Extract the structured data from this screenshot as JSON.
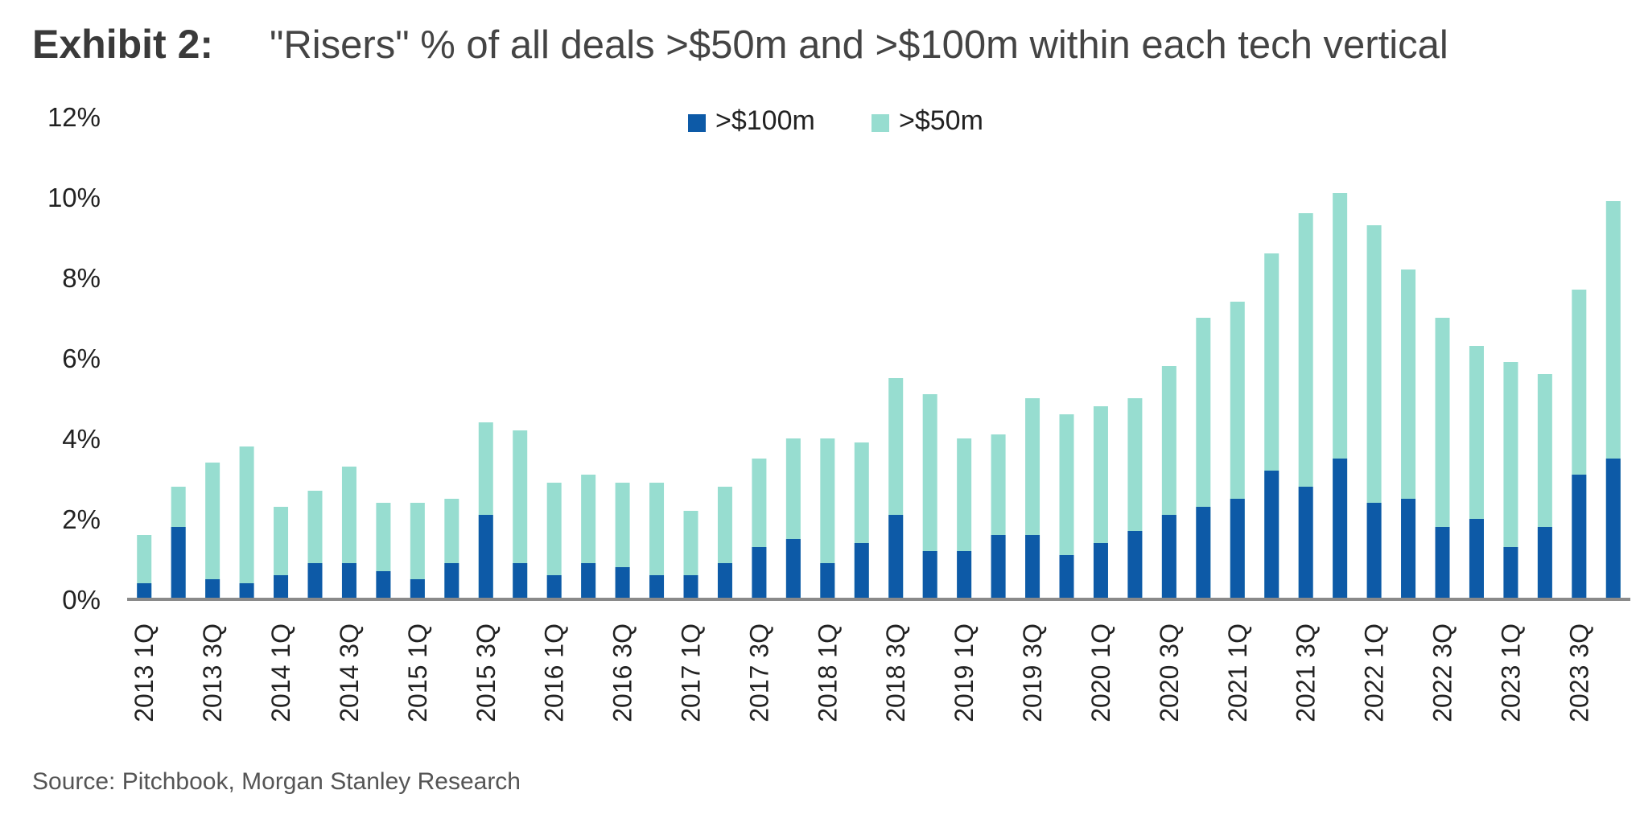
{
  "header": {
    "exhibit": "Exhibit 2:",
    "title": "\"Risers\" % of all deals >$50m and >$100m within each tech vertical"
  },
  "legend": {
    "items": [
      {
        "label": ">$100m",
        "color": "#0d5aa7"
      },
      {
        "label": ">$50m",
        "color": "#97ddd0"
      }
    ]
  },
  "footer": {
    "source": "Source: Pitchbook, Morgan Stanley Research"
  },
  "chart_data": {
    "type": "bar",
    "stacked": false,
    "overlapping": true,
    "ylim": [
      0,
      12
    ],
    "yticks": [
      "0%",
      "2%",
      "4%",
      "6%",
      "8%",
      "10%",
      "12%"
    ],
    "grid": false,
    "legend_position": "top-center",
    "x_tick_labels_every": 2,
    "categories": [
      "2013 1Q",
      "2013 2Q",
      "2013 3Q",
      "2013 4Q",
      "2014 1Q",
      "2014 2Q",
      "2014 3Q",
      "2014 4Q",
      "2015 1Q",
      "2015 2Q",
      "2015 3Q",
      "2015 4Q",
      "2016 1Q",
      "2016 2Q",
      "2016 3Q",
      "2016 4Q",
      "2017 1Q",
      "2017 2Q",
      "2017 3Q",
      "2017 4Q",
      "2018 1Q",
      "2018 2Q",
      "2018 3Q",
      "2018 4Q",
      "2019 1Q",
      "2019 2Q",
      "2019 3Q",
      "2019 4Q",
      "2020 1Q",
      "2020 2Q",
      "2020 3Q",
      "2020 4Q",
      "2021 1Q",
      "2021 2Q",
      "2021 3Q",
      "2021 4Q",
      "2022 1Q",
      "2022 2Q",
      "2022 3Q",
      "2022 4Q",
      "2023 1Q",
      "2023 2Q",
      "2023 3Q",
      "2023 4Q"
    ],
    "series": [
      {
        "name": ">$50m",
        "color": "#97ddd0",
        "values": [
          1.6,
          2.8,
          3.4,
          3.8,
          2.3,
          2.7,
          3.3,
          2.4,
          2.4,
          2.5,
          4.4,
          4.2,
          2.9,
          3.1,
          2.9,
          2.9,
          2.2,
          2.8,
          3.5,
          4.0,
          4.0,
          3.9,
          5.5,
          5.1,
          4.0,
          4.1,
          5.0,
          4.6,
          4.8,
          5.0,
          5.8,
          7.0,
          7.4,
          8.6,
          9.6,
          10.1,
          9.3,
          8.2,
          7.0,
          6.3,
          5.9,
          5.6,
          7.7,
          9.9
        ]
      },
      {
        "name": ">$100m",
        "color": "#0d5aa7",
        "values": [
          0.4,
          1.8,
          0.5,
          0.4,
          0.6,
          0.9,
          0.9,
          0.7,
          0.5,
          0.9,
          2.1,
          0.9,
          0.6,
          0.9,
          0.8,
          0.6,
          0.6,
          0.9,
          1.3,
          1.5,
          0.9,
          1.4,
          2.1,
          1.2,
          1.2,
          1.6,
          1.6,
          1.1,
          1.4,
          1.7,
          2.1,
          2.3,
          2.5,
          3.2,
          2.8,
          3.5,
          2.4,
          2.5,
          1.8,
          2.0,
          1.3,
          1.8,
          3.1,
          3.5
        ]
      }
    ]
  }
}
